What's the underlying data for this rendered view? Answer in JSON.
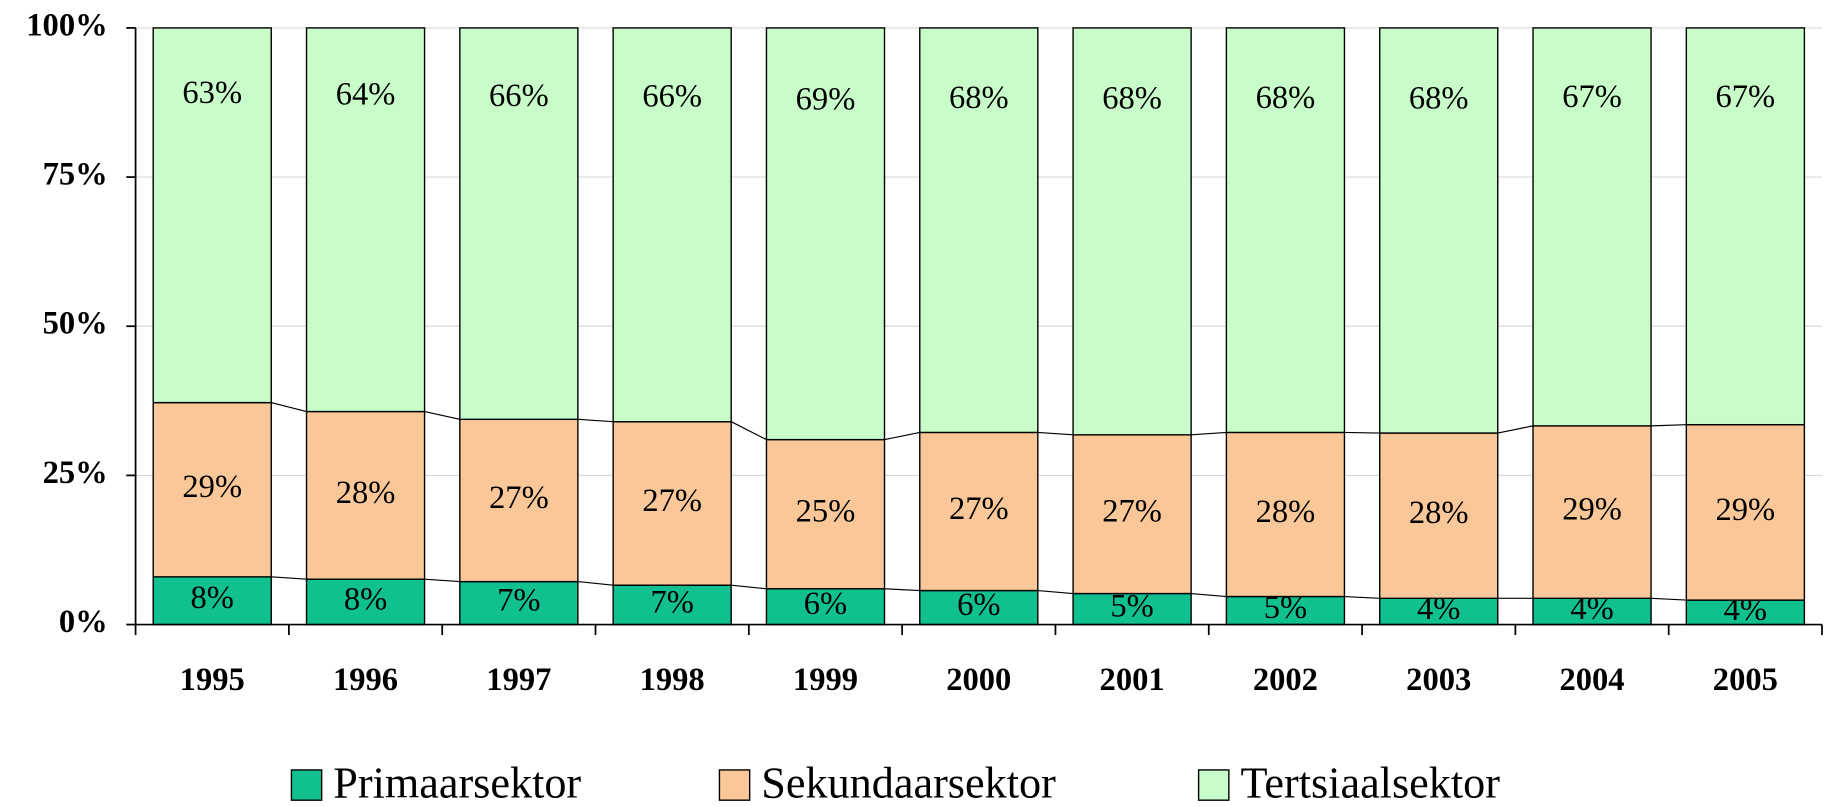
{
  "chart_data": {
    "type": "stacked_bar_100",
    "categories": [
      "1995",
      "1996",
      "1997",
      "1998",
      "1999",
      "2000",
      "2001",
      "2002",
      "2003",
      "2004",
      "2005"
    ],
    "series": [
      {
        "name": "Primaarsektor",
        "color": "#10c08e",
        "values": [
          8.0,
          7.6,
          7.2,
          6.6,
          6.0,
          5.7,
          5.2,
          4.7,
          4.4,
          4.4,
          4.1
        ],
        "value_labels": [
          "8%",
          "8%",
          "7%",
          "7%",
          "6%",
          "6%",
          "5%",
          "5%",
          "4%",
          "4%",
          "4%"
        ]
      },
      {
        "name": "Sekundaarsektor",
        "color": "#fac898",
        "values": [
          29.2,
          28.1,
          27.2,
          27.4,
          25.0,
          26.5,
          26.6,
          27.5,
          27.7,
          28.9,
          29.4
        ],
        "value_labels": [
          "29%",
          "28%",
          "27%",
          "27%",
          "25%",
          "27%",
          "27%",
          "28%",
          "28%",
          "29%",
          "29%"
        ]
      },
      {
        "name": "Tertsiaalsektor",
        "color": "#c8fcc8",
        "values": [
          62.8,
          64.3,
          65.6,
          66.0,
          69.0,
          67.8,
          68.2,
          67.8,
          67.9,
          66.7,
          66.5
        ],
        "value_labels": [
          "63%",
          "64%",
          "66%",
          "66%",
          "69%",
          "68%",
          "68%",
          "68%",
          "68%",
          "67%",
          "67%"
        ]
      }
    ],
    "ylim": [
      0,
      100
    ],
    "yticks": [
      {
        "value": 0,
        "label": "0%"
      },
      {
        "value": 25,
        "label": "25%"
      },
      {
        "value": 50,
        "label": "50%"
      },
      {
        "value": 75,
        "label": "75%"
      },
      {
        "value": 100,
        "label": "100%"
      }
    ],
    "grid": true,
    "legend": "bottom"
  }
}
